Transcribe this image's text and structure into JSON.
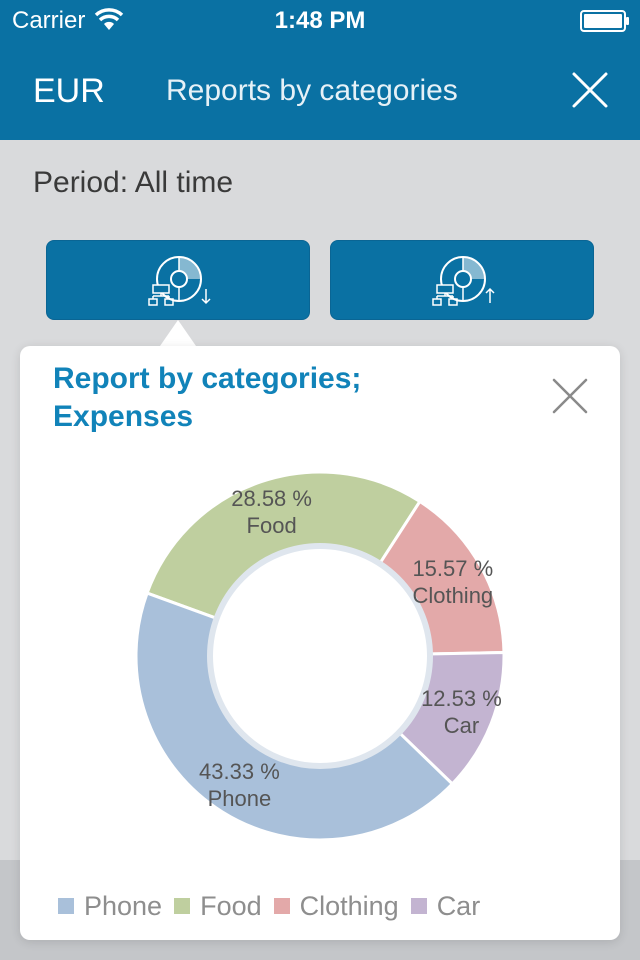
{
  "status_bar": {
    "carrier": "Carrier",
    "time": "1:48 PM"
  },
  "nav": {
    "currency": "EUR",
    "title": "Reports by categories"
  },
  "period": {
    "text": "Period: All time"
  },
  "buttons": [
    {
      "name": "expenses-report",
      "icon": "pie-chart-down-icon"
    },
    {
      "name": "income-report",
      "icon": "pie-chart-up-icon"
    }
  ],
  "popover": {
    "title_line1": "Report by categories;",
    "title_line2": "Expenses"
  },
  "chart_data": {
    "type": "pie",
    "title": "Report by categories; Expenses",
    "legend_position": "bottom",
    "slices": [
      {
        "name": "Food",
        "value": 28.58,
        "label_value": "28.58 %",
        "color": "#bfcf9f"
      },
      {
        "name": "Clothing",
        "value": 15.57,
        "label_value": "15.57 %",
        "color": "#e3a9a9"
      },
      {
        "name": "Car",
        "value": 12.53,
        "label_value": "12.53 %",
        "color": "#c3b4d1"
      },
      {
        "name": "Phone",
        "value": 43.33,
        "label_value": "43.33 %",
        "color": "#a9c0da"
      }
    ],
    "legend": [
      "Phone",
      "Food",
      "Clothing",
      "Car"
    ]
  },
  "colors": {
    "accent": "#0a71a3",
    "title": "#1183b9"
  }
}
